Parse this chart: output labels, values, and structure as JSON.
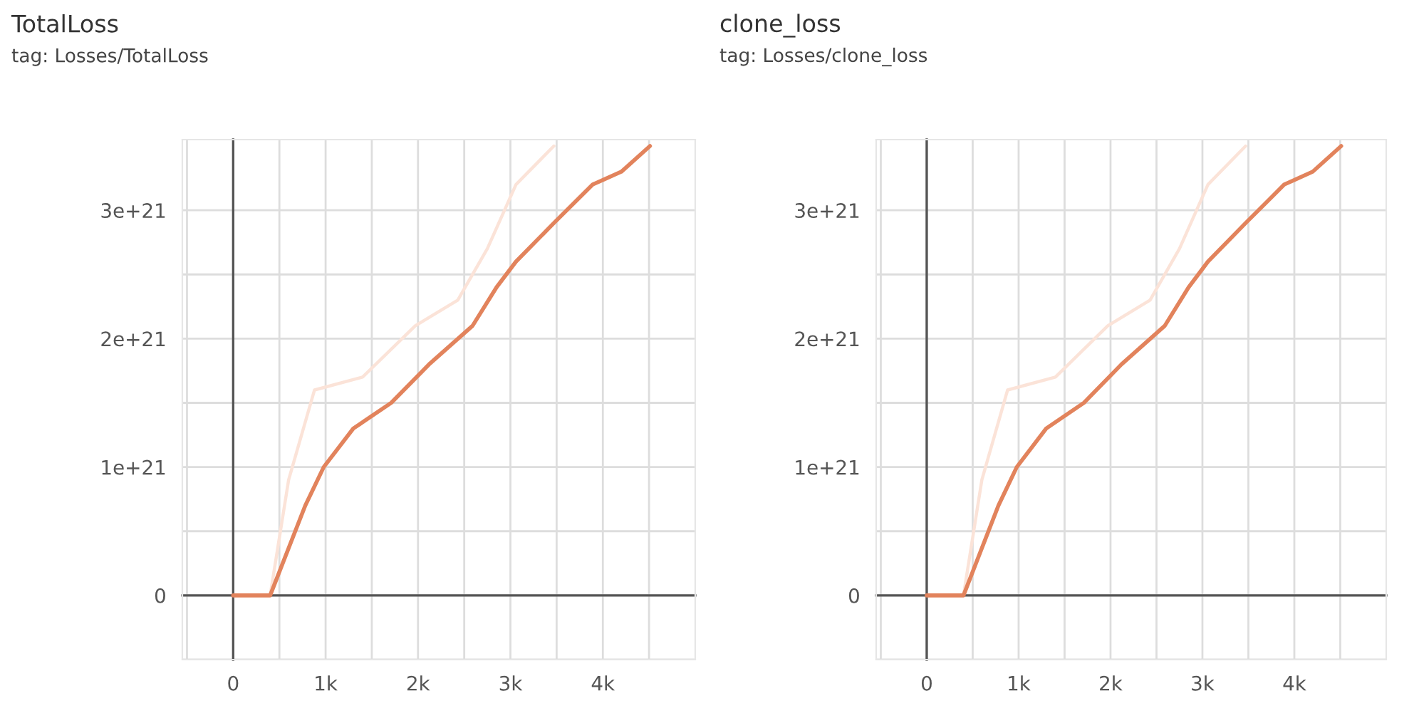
{
  "chart_data": [
    {
      "type": "line",
      "title": "TotalLoss",
      "subtitle": "tag: Losses/TotalLoss",
      "series": [
        {
          "color": "#fbe3d8",
          "x": [
            0,
            400,
            600,
            880,
            1400,
            1970,
            2430,
            2750,
            3060,
            3470
          ],
          "values": [
            0,
            0,
            9e+20,
            1.6e+21,
            1.7e+21,
            2.1e+21,
            2.3e+21,
            2.7e+21,
            3.2e+21,
            3.5e+21
          ]
        },
        {
          "color": "#e2835c",
          "x": [
            0,
            400,
            780,
            980,
            1300,
            1710,
            2120,
            2590,
            2850,
            3060,
            3470,
            3890,
            4200,
            4510
          ],
          "values": [
            0,
            0,
            7e+20,
            1e+21,
            1.3e+21,
            1.5e+21,
            1.8e+21,
            2.1e+21,
            2.4e+21,
            2.6e+21,
            2.9e+21,
            3.2e+21,
            3.3e+21,
            3.5e+21
          ]
        }
      ],
      "xlim": [
        -550,
        5000
      ],
      "ylim": [
        -5e+20,
        3.55e+21
      ],
      "xticks": [
        {
          "value": -500,
          "label": null
        },
        0,
        {
          "value": 500,
          "label": null
        },
        {
          "value": 1000,
          "label": "1k"
        },
        {
          "value": 1500,
          "label": null
        },
        {
          "value": 2000,
          "label": "2k"
        },
        {
          "value": 2500,
          "label": null
        },
        {
          "value": 3000,
          "label": "3k"
        },
        {
          "value": 3500,
          "label": null
        },
        {
          "value": 4000,
          "label": "4k"
        },
        {
          "value": 4500,
          "label": null
        }
      ],
      "yticks": [
        {
          "value": -5e+20,
          "label": null
        },
        0,
        {
          "value": 5e+20,
          "label": null
        },
        {
          "value": 1e+21,
          "label": "1e+21"
        },
        {
          "value": 1.5e+21,
          "label": null
        },
        {
          "value": 2e+21,
          "label": "2e+21"
        },
        {
          "value": 2.5e+21,
          "label": null
        },
        {
          "value": 3e+21,
          "label": "3e+21"
        }
      ],
      "grid": true,
      "legend": false,
      "marker": "none",
      "line_style": "solid"
    },
    {
      "type": "line",
      "title": "clone_loss",
      "subtitle": "tag: Losses/clone_loss",
      "series": [
        {
          "color": "#fbe3d8",
          "x": [
            0,
            400,
            600,
            880,
            1400,
            1970,
            2430,
            2750,
            3060,
            3470
          ],
          "values": [
            0,
            0,
            9e+20,
            1.6e+21,
            1.7e+21,
            2.1e+21,
            2.3e+21,
            2.7e+21,
            3.2e+21,
            3.5e+21
          ]
        },
        {
          "color": "#e2835c",
          "x": [
            0,
            400,
            780,
            980,
            1300,
            1710,
            2120,
            2590,
            2850,
            3060,
            3470,
            3890,
            4200,
            4510
          ],
          "values": [
            0,
            0,
            7e+20,
            1e+21,
            1.3e+21,
            1.5e+21,
            1.8e+21,
            2.1e+21,
            2.4e+21,
            2.6e+21,
            2.9e+21,
            3.2e+21,
            3.3e+21,
            3.5e+21
          ]
        }
      ],
      "xlim": [
        -550,
        5000
      ],
      "ylim": [
        -5e+20,
        3.55e+21
      ],
      "xticks": [
        {
          "value": -500,
          "label": null
        },
        0,
        {
          "value": 500,
          "label": null
        },
        {
          "value": 1000,
          "label": "1k"
        },
        {
          "value": 1500,
          "label": null
        },
        {
          "value": 2000,
          "label": "2k"
        },
        {
          "value": 2500,
          "label": null
        },
        {
          "value": 3000,
          "label": "3k"
        },
        {
          "value": 3500,
          "label": null
        },
        {
          "value": 4000,
          "label": "4k"
        },
        {
          "value": 4500,
          "label": null
        }
      ],
      "yticks": [
        {
          "value": -5e+20,
          "label": null
        },
        0,
        {
          "value": 5e+20,
          "label": null
        },
        {
          "value": 1e+21,
          "label": "1e+21"
        },
        {
          "value": 1.5e+21,
          "label": null
        },
        {
          "value": 2e+21,
          "label": "2e+21"
        },
        {
          "value": 2.5e+21,
          "label": null
        },
        {
          "value": 3e+21,
          "label": "3e+21"
        }
      ],
      "grid": true,
      "legend": false,
      "marker": "none",
      "line_style": "solid"
    }
  ]
}
